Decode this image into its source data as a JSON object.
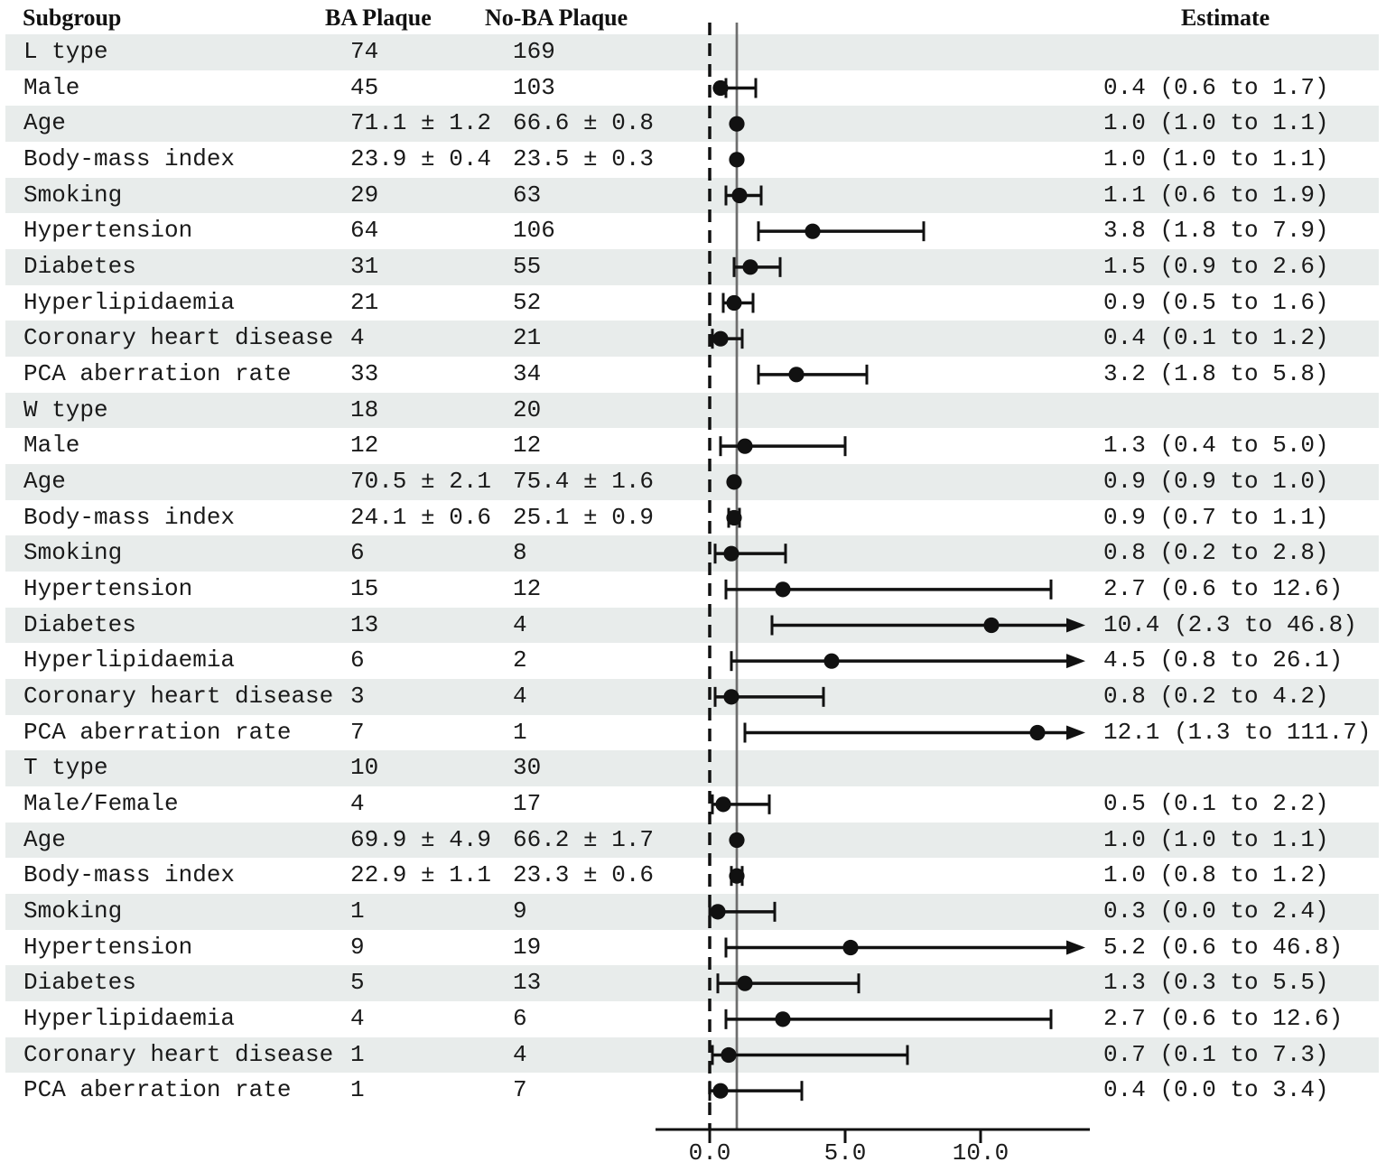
{
  "header": {
    "subgroup": "Subgroup",
    "ba": "BA Plaque",
    "noba": "No-BA Plaque",
    "estimate": "Estimate"
  },
  "colors": {
    "band": "#e8eceb",
    "ink": "#1a1a1a",
    "marker": "#111111",
    "solid_ref_line": "#6e6e6e",
    "dashed_ref_line": "#111111"
  },
  "chart_data": {
    "type": "forest",
    "title": "",
    "columns": [
      "Subgroup",
      "BA Plaque",
      "No-BA Plaque",
      "Estimate"
    ],
    "axis": {
      "xmin": -2.0,
      "xmax": 13.9,
      "ticks": [
        0.0,
        5.0,
        10.0
      ],
      "tick_labels": [
        "0.0",
        "5.0",
        "10.0"
      ],
      "dashed_reference_at": 0.0,
      "solid_reference_at": 1.0
    },
    "rows": [
      {
        "label": "L type",
        "ba": "74",
        "noba": "169",
        "estimate_text": "",
        "est": null,
        "lo": null,
        "hi": null,
        "arrow": false
      },
      {
        "label": "Male",
        "ba": "45",
        "noba": "103",
        "estimate_text": "0.4 (0.6 to 1.7)",
        "est": 0.4,
        "lo": 0.6,
        "hi": 1.7,
        "arrow": false
      },
      {
        "label": "Age",
        "ba": "71.1 ± 1.2",
        "noba": "66.6 ± 0.8",
        "estimate_text": "1.0 (1.0 to 1.1)",
        "est": 1.0,
        "lo": 1.0,
        "hi": 1.1,
        "arrow": false
      },
      {
        "label": "Body-mass index",
        "ba": "23.9 ± 0.4",
        "noba": "23.5 ± 0.3",
        "estimate_text": "1.0 (1.0 to 1.1)",
        "est": 1.0,
        "lo": 1.0,
        "hi": 1.1,
        "arrow": false
      },
      {
        "label": "Smoking",
        "ba": "29",
        "noba": "63",
        "estimate_text": "1.1 (0.6 to 1.9)",
        "est": 1.1,
        "lo": 0.6,
        "hi": 1.9,
        "arrow": false
      },
      {
        "label": "Hypertension",
        "ba": "64",
        "noba": "106",
        "estimate_text": "3.8 (1.8 to 7.9)",
        "est": 3.8,
        "lo": 1.8,
        "hi": 7.9,
        "arrow": false
      },
      {
        "label": "Diabetes",
        "ba": "31",
        "noba": "55",
        "estimate_text": "1.5 (0.9 to 2.6)",
        "est": 1.5,
        "lo": 0.9,
        "hi": 2.6,
        "arrow": false
      },
      {
        "label": "Hyperlipidaemia",
        "ba": "21",
        "noba": "52",
        "estimate_text": "0.9 (0.5 to 1.6)",
        "est": 0.9,
        "lo": 0.5,
        "hi": 1.6,
        "arrow": false
      },
      {
        "label": "Coronary heart disease",
        "ba": "4",
        "noba": "21",
        "estimate_text": "0.4 (0.1 to 1.2)",
        "est": 0.4,
        "lo": 0.1,
        "hi": 1.2,
        "arrow": false
      },
      {
        "label": "PCA aberration rate",
        "ba": "33",
        "noba": "34",
        "estimate_text": "3.2 (1.8 to 5.8)",
        "est": 3.2,
        "lo": 1.8,
        "hi": 5.8,
        "arrow": false
      },
      {
        "label": "W type",
        "ba": "18",
        "noba": "20",
        "estimate_text": "",
        "est": null,
        "lo": null,
        "hi": null,
        "arrow": false
      },
      {
        "label": "Male",
        "ba": "12",
        "noba": "12",
        "estimate_text": "1.3 (0.4 to 5.0)",
        "est": 1.3,
        "lo": 0.4,
        "hi": 5.0,
        "arrow": false
      },
      {
        "label": "Age",
        "ba": "70.5 ± 2.1",
        "noba": "75.4 ± 1.6",
        "estimate_text": "0.9 (0.9 to 1.0)",
        "est": 0.9,
        "lo": 0.9,
        "hi": 1.0,
        "arrow": false
      },
      {
        "label": "Body-mass index",
        "ba": "24.1 ± 0.6",
        "noba": "25.1 ± 0.9",
        "estimate_text": "0.9 (0.7 to 1.1)",
        "est": 0.9,
        "lo": 0.7,
        "hi": 1.1,
        "arrow": false
      },
      {
        "label": "Smoking",
        "ba": "6",
        "noba": "8",
        "estimate_text": "0.8 (0.2 to 2.8)",
        "est": 0.8,
        "lo": 0.2,
        "hi": 2.8,
        "arrow": false
      },
      {
        "label": "Hypertension",
        "ba": "15",
        "noba": "12",
        "estimate_text": "2.7 (0.6 to 12.6)",
        "est": 2.7,
        "lo": 0.6,
        "hi": 12.6,
        "arrow": false
      },
      {
        "label": "Diabetes",
        "ba": "13",
        "noba": "4",
        "estimate_text": "10.4 (2.3 to 46.8)",
        "est": 10.4,
        "lo": 2.3,
        "hi": 46.8,
        "arrow": true
      },
      {
        "label": "Hyperlipidaemia",
        "ba": "6",
        "noba": "2",
        "estimate_text": "4.5 (0.8 to 26.1)",
        "est": 4.5,
        "lo": 0.8,
        "hi": 26.1,
        "arrow": true
      },
      {
        "label": "Coronary heart disease",
        "ba": "3",
        "noba": "4",
        "estimate_text": "0.8 (0.2 to 4.2)",
        "est": 0.8,
        "lo": 0.2,
        "hi": 4.2,
        "arrow": false
      },
      {
        "label": "PCA aberration rate",
        "ba": "7",
        "noba": "1",
        "estimate_text": "12.1 (1.3 to 111.7)",
        "est": 12.1,
        "lo": 1.3,
        "hi": 111.7,
        "arrow": true
      },
      {
        "label": "T type",
        "ba": "10",
        "noba": "30",
        "estimate_text": "",
        "est": null,
        "lo": null,
        "hi": null,
        "arrow": false
      },
      {
        "label": "Male/Female",
        "ba": "4",
        "noba": "17",
        "estimate_text": "0.5 (0.1 to 2.2)",
        "est": 0.5,
        "lo": 0.1,
        "hi": 2.2,
        "arrow": false
      },
      {
        "label": "Age",
        "ba": "69.9 ± 4.9",
        "noba": "66.2 ± 1.7",
        "estimate_text": "1.0 (1.0 to 1.1)",
        "est": 1.0,
        "lo": 1.0,
        "hi": 1.1,
        "arrow": false
      },
      {
        "label": "Body-mass index",
        "ba": "22.9 ± 1.1",
        "noba": "23.3 ± 0.6",
        "estimate_text": "1.0 (0.8 to 1.2)",
        "est": 1.0,
        "lo": 0.8,
        "hi": 1.2,
        "arrow": false
      },
      {
        "label": "Smoking",
        "ba": "1",
        "noba": "9",
        "estimate_text": "0.3 (0.0 to 2.4)",
        "est": 0.3,
        "lo": 0.0,
        "hi": 2.4,
        "arrow": false
      },
      {
        "label": "Hypertension",
        "ba": "9",
        "noba": "19",
        "estimate_text": "5.2 (0.6 to 46.8)",
        "est": 5.2,
        "lo": 0.6,
        "hi": 46.8,
        "arrow": true
      },
      {
        "label": "Diabetes",
        "ba": "5",
        "noba": "13",
        "estimate_text": "1.3 (0.3 to 5.5)",
        "est": 1.3,
        "lo": 0.3,
        "hi": 5.5,
        "arrow": false
      },
      {
        "label": "Hyperlipidaemia",
        "ba": "4",
        "noba": "6",
        "estimate_text": "2.7 (0.6 to 12.6)",
        "est": 2.7,
        "lo": 0.6,
        "hi": 12.6,
        "arrow": false
      },
      {
        "label": "Coronary heart disease",
        "ba": "1",
        "noba": "4",
        "estimate_text": "0.7 (0.1 to 7.3)",
        "est": 0.7,
        "lo": 0.1,
        "hi": 7.3,
        "arrow": false
      },
      {
        "label": "PCA aberration rate",
        "ba": "1",
        "noba": "7",
        "estimate_text": "0.4 (0.0 to 3.4)",
        "est": 0.4,
        "lo": 0.0,
        "hi": 3.4,
        "arrow": false
      }
    ]
  }
}
